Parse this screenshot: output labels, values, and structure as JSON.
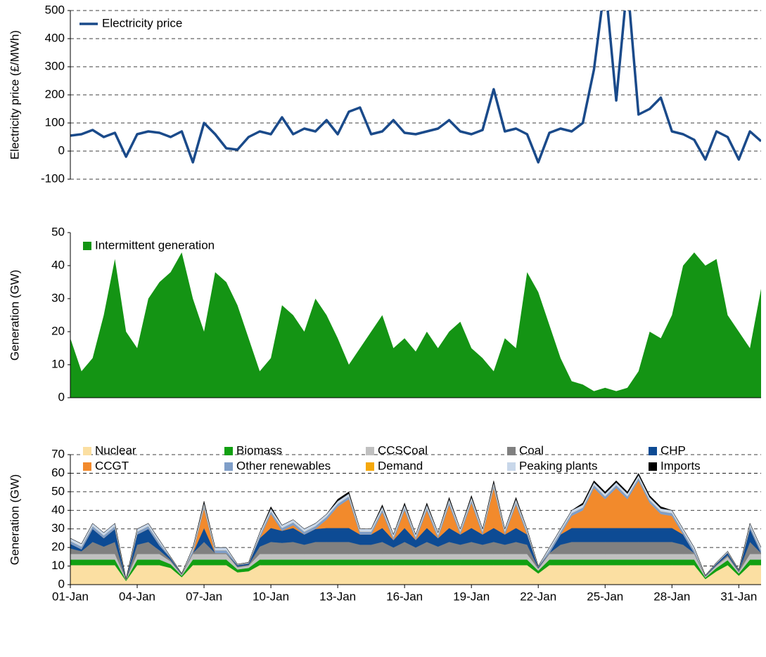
{
  "chart_data": [
    {
      "type": "line",
      "y_label": "Electricity price (£/MWh)",
      "x": [
        1,
        1.5,
        2,
        2.5,
        3,
        3.5,
        4,
        4.5,
        5,
        5.5,
        6,
        6.5,
        7,
        7.5,
        8,
        8.5,
        9,
        9.5,
        10,
        10.5,
        11,
        11.5,
        12,
        12.5,
        13,
        13.5,
        14,
        14.5,
        15,
        15.5,
        16,
        16.5,
        17,
        17.5,
        18,
        18.5,
        19,
        19.5,
        20,
        20.5,
        21,
        21.5,
        22,
        22.5,
        23,
        23.5,
        24,
        24.5,
        25,
        25.5,
        26,
        26.5,
        27,
        27.5,
        28,
        28.5,
        29,
        29.5,
        30,
        30.5,
        31,
        31.5,
        32
      ],
      "xlim": [
        1,
        32
      ],
      "ylim": [
        -100,
        500
      ],
      "yticks": [
        -100,
        0,
        100,
        200,
        300,
        400,
        500
      ],
      "grid": true,
      "legend": "upper left",
      "series": [
        {
          "name": "Electricity price",
          "color": "#1a4a8a",
          "values": [
            55,
            60,
            75,
            50,
            65,
            -20,
            60,
            70,
            65,
            50,
            70,
            -40,
            100,
            60,
            10,
            5,
            50,
            70,
            60,
            120,
            60,
            80,
            70,
            110,
            60,
            140,
            155,
            60,
            70,
            110,
            65,
            60,
            70,
            80,
            110,
            70,
            60,
            75,
            220,
            70,
            80,
            60,
            -40,
            65,
            80,
            70,
            100,
            290,
            600,
            180,
            600,
            130,
            150,
            190,
            70,
            60,
            40,
            -30,
            70,
            50,
            -30,
            70,
            35
          ]
        }
      ]
    },
    {
      "type": "area",
      "y_label": "Generation (GW)",
      "x": [
        1,
        1.5,
        2,
        2.5,
        3,
        3.5,
        4,
        4.5,
        5,
        5.5,
        6,
        6.5,
        7,
        7.5,
        8,
        8.5,
        9,
        9.5,
        10,
        10.5,
        11,
        11.5,
        12,
        12.5,
        13,
        13.5,
        14,
        14.5,
        15,
        15.5,
        16,
        16.5,
        17,
        17.5,
        18,
        18.5,
        19,
        19.5,
        20,
        20.5,
        21,
        21.5,
        22,
        22.5,
        23,
        23.5,
        24,
        24.5,
        25,
        25.5,
        26,
        26.5,
        27,
        27.5,
        28,
        28.5,
        29,
        29.5,
        30,
        30.5,
        31,
        31.5,
        32
      ],
      "xlim": [
        1,
        32
      ],
      "ylim": [
        0,
        50
      ],
      "yticks": [
        0,
        10,
        20,
        30,
        40,
        50
      ],
      "grid": false,
      "legend": "upper left",
      "series": [
        {
          "name": "Intermittent generation",
          "color": "#149414",
          "values": [
            18,
            8,
            12,
            25,
            42,
            20,
            15,
            30,
            35,
            38,
            44,
            30,
            20,
            38,
            35,
            28,
            18,
            8,
            12,
            28,
            25,
            20,
            30,
            25,
            18,
            10,
            15,
            20,
            25,
            15,
            18,
            14,
            20,
            15,
            20,
            23,
            15,
            12,
            8,
            18,
            15,
            38,
            32,
            22,
            12,
            5,
            4,
            2,
            3,
            2,
            3,
            8,
            20,
            18,
            25,
            40,
            44,
            40,
            42,
            25,
            20,
            15,
            33
          ]
        }
      ]
    },
    {
      "type": "stacked_area",
      "y_label": "Generation (GW)",
      "x": [
        1,
        1.5,
        2,
        2.5,
        3,
        3.5,
        4,
        4.5,
        5,
        5.5,
        6,
        6.5,
        7,
        7.5,
        8,
        8.5,
        9,
        9.5,
        10,
        10.5,
        11,
        11.5,
        12,
        12.5,
        13,
        13.5,
        14,
        14.5,
        15,
        15.5,
        16,
        16.5,
        17,
        17.5,
        18,
        18.5,
        19,
        19.5,
        20,
        20.5,
        21,
        21.5,
        22,
        22.5,
        23,
        23.5,
        24,
        24.5,
        25,
        25.5,
        26,
        26.5,
        27,
        27.5,
        28,
        28.5,
        29,
        29.5,
        30,
        30.5,
        31,
        31.5,
        32
      ],
      "xlim": [
        1,
        32
      ],
      "ylim": [
        0,
        70
      ],
      "yticks": [
        0,
        10,
        20,
        30,
        40,
        50,
        60,
        70
      ],
      "grid": true,
      "legend": "top",
      "xticks": [
        {
          "value": 1,
          "label": "01-Jan"
        },
        {
          "value": 4,
          "label": "04-Jan"
        },
        {
          "value": 7,
          "label": "07-Jan"
        },
        {
          "value": 10,
          "label": "10-Jan"
        },
        {
          "value": 13,
          "label": "13-Jan"
        },
        {
          "value": 16,
          "label": "16-Jan"
        },
        {
          "value": 19,
          "label": "19-Jan"
        },
        {
          "value": 22,
          "label": "22-Jan"
        },
        {
          "value": 25,
          "label": "25-Jan"
        },
        {
          "value": 28,
          "label": "28-Jan"
        },
        {
          "value": 31,
          "label": "31-Jan"
        }
      ],
      "series": [
        {
          "name": "Nuclear",
          "color": "#fbdfa2",
          "values": [
            10.5,
            10.5,
            10.5,
            10.5,
            10.5,
            2,
            10.5,
            10.5,
            10.5,
            9,
            4,
            10.5,
            10.5,
            10.5,
            10.5,
            6.6,
            7.2,
            10.5,
            10.5,
            10.5,
            10.5,
            10.5,
            10.5,
            10.5,
            10.5,
            10.5,
            10.5,
            10.5,
            10.5,
            10.5,
            10.5,
            10.5,
            10.5,
            10.5,
            10.5,
            10.5,
            10.5,
            10.5,
            10.5,
            10.5,
            10.5,
            10.5,
            6,
            10.5,
            10.5,
            10.5,
            10.5,
            10.5,
            10.5,
            10.5,
            10.5,
            10.5,
            10.5,
            10.5,
            10.5,
            10.5,
            10.5,
            3,
            7.2,
            10.5,
            4.8,
            10.5,
            10.5
          ]
        },
        {
          "name": "Biomass",
          "color": "#12a012",
          "values": [
            3,
            3,
            3,
            3,
            3,
            0.5,
            3,
            3,
            3,
            2,
            0.8,
            3,
            3,
            3,
            3,
            1.6,
            1.8,
            3,
            3,
            3,
            3,
            3,
            3,
            3,
            3,
            3,
            3,
            3,
            3,
            3,
            3,
            3,
            3,
            3,
            3,
            3,
            3,
            3,
            3,
            3,
            3,
            3,
            1.5,
            3,
            3,
            3,
            3,
            3,
            3,
            3,
            3,
            3,
            3,
            3,
            3,
            3,
            3,
            0.8,
            1.8,
            2.7,
            1.2,
            3,
            3
          ]
        },
        {
          "name": "CCSCoal",
          "color": "#c0c0c0",
          "values": [
            3,
            3,
            3,
            3,
            3,
            0.3,
            3,
            3,
            3,
            1.5,
            0.5,
            3,
            3,
            3,
            3,
            1.1,
            1.2,
            3,
            3,
            3,
            3,
            3,
            3,
            3,
            3,
            3,
            3,
            3,
            3,
            3,
            3,
            3,
            3,
            3,
            3,
            3,
            3,
            3,
            3,
            3,
            3,
            3,
            1,
            3,
            3,
            3,
            3,
            3,
            3,
            3,
            3,
            3,
            3,
            3,
            3,
            3,
            3,
            0.5,
            1.2,
            1.8,
            0.8,
            3,
            3
          ]
        },
        {
          "name": "Coal",
          "color": "#808080",
          "values": [
            3,
            1.5,
            6.5,
            4,
            6.5,
            0,
            5,
            6.5,
            2,
            0.8,
            0.2,
            0.5,
            6.5,
            0.5,
            0.5,
            0.5,
            0.5,
            4,
            6.5,
            6,
            6.5,
            5,
            6.5,
            6.5,
            6.5,
            6.5,
            5,
            5,
            6.5,
            3.5,
            6.5,
            3.5,
            6.5,
            4,
            6.5,
            5,
            6.5,
            5,
            6.5,
            5,
            6.5,
            5,
            0.5,
            0.5,
            5,
            6.5,
            6.5,
            6.5,
            6.5,
            6.5,
            6.5,
            6.5,
            6.5,
            6.5,
            6.5,
            5,
            0.5,
            0.2,
            0.5,
            0.9,
            0.4,
            6.5,
            0.5
          ]
        },
        {
          "name": "CHP",
          "color": "#0d4b94",
          "values": [
            2.5,
            1,
            7,
            4.5,
            7,
            0.2,
            5.5,
            7,
            2.5,
            1,
            0.3,
            0,
            7.5,
            0,
            0,
            0.7,
            0.7,
            4.5,
            7.5,
            6.5,
            7.5,
            5.5,
            7,
            7.5,
            7.5,
            7.5,
            5.5,
            5.5,
            7.5,
            4,
            7.5,
            4,
            7.5,
            4.5,
            7.5,
            5.5,
            7.5,
            5.5,
            7.5,
            5.5,
            7.5,
            5.5,
            0.6,
            0,
            5.5,
            7.5,
            7.5,
            7.5,
            7.5,
            7.5,
            7.5,
            7.5,
            7.5,
            7.5,
            7.5,
            5.5,
            0,
            0.3,
            0.7,
            1.2,
            0.5,
            7,
            0
          ]
        },
        {
          "name": "CCGT",
          "color": "#f28a2c",
          "values": [
            0,
            0,
            0,
            0,
            0,
            0,
            0,
            0,
            0,
            0,
            0,
            0,
            10.5,
            0,
            0,
            0,
            0,
            0,
            7.5,
            0,
            1.5,
            0,
            0,
            4.5,
            11.5,
            15.5,
            0,
            0,
            8.5,
            0,
            9.5,
            0,
            9.5,
            0,
            12.5,
            0,
            13.5,
            0,
            21.5,
            0,
            12.5,
            0,
            0,
            0,
            0,
            6.5,
            9.5,
            21.5,
            15.5,
            21.5,
            15.5,
            25.5,
            13.5,
            7.5,
            6.5,
            0,
            0,
            0,
            0,
            0,
            0,
            0,
            0
          ]
        },
        {
          "name": "Other renewables",
          "color": "#7f9ec8",
          "values": [
            1.5,
            1.5,
            1.5,
            1.5,
            1.5,
            0,
            1.5,
            1.5,
            1.5,
            0.4,
            0.1,
            1.5,
            1.5,
            1.5,
            1.5,
            0.3,
            0.3,
            1.5,
            1.5,
            1.5,
            1.5,
            1.5,
            1.5,
            1.5,
            1.5,
            1.5,
            1.5,
            1.5,
            1.5,
            1.5,
            1.5,
            1.5,
            1.5,
            1.5,
            1.5,
            1.5,
            1.5,
            1.5,
            1.5,
            1.5,
            1.5,
            1.5,
            0.2,
            1.5,
            1.5,
            1.5,
            1.5,
            1.5,
            1.5,
            1.5,
            1.5,
            1.5,
            1.5,
            1.5,
            1.5,
            1.5,
            1.5,
            0.1,
            0.3,
            0.5,
            0.2,
            1.5,
            1.5
          ]
        },
        {
          "name": "Demand",
          "color": "#f5a80c",
          "values": [
            0,
            0,
            0,
            0,
            0,
            0,
            0,
            0,
            0,
            0,
            0,
            0,
            0,
            0,
            0,
            0,
            0,
            0,
            0,
            0,
            0,
            0,
            0,
            0,
            0,
            0,
            0,
            0,
            0,
            0,
            0,
            0,
            0,
            0,
            0,
            0,
            0,
            0,
            0,
            0,
            0,
            0,
            0,
            0,
            0,
            0,
            0,
            0,
            0,
            0,
            0,
            0,
            0,
            0,
            0,
            0,
            0,
            0,
            0,
            0,
            0,
            0,
            0
          ]
        },
        {
          "name": "Peaking plants",
          "color": "#c8d7ea",
          "values": [
            1.5,
            1.5,
            1.5,
            1.5,
            1.5,
            0,
            1.5,
            1.5,
            1.5,
            0.3,
            0.1,
            1.5,
            1.5,
            1.5,
            1.5,
            0.2,
            0.3,
            1.5,
            1.5,
            1.5,
            1.5,
            1.5,
            1.5,
            1.5,
            1.5,
            1.5,
            1.5,
            1.5,
            1.5,
            1.5,
            1.5,
            1.5,
            1.5,
            1.5,
            1.5,
            1.5,
            1.5,
            1.5,
            1.5,
            1.5,
            1.5,
            1.5,
            0.2,
            1.5,
            1.5,
            1.5,
            1.5,
            1.5,
            1.5,
            1.5,
            1.5,
            1.5,
            1.5,
            1.5,
            1.5,
            1.5,
            1.5,
            0.1,
            0.3,
            0.4,
            0.1,
            1.5,
            1.5
          ]
        },
        {
          "name": "Imports",
          "color": "#000000",
          "values": [
            0,
            0,
            0,
            0,
            0,
            0,
            0,
            0,
            0,
            0,
            0,
            0,
            1,
            0,
            0,
            0,
            0,
            0,
            1,
            0,
            0,
            0,
            0,
            0,
            1,
            1,
            0,
            0,
            1,
            0,
            1,
            0,
            1,
            0,
            1,
            0,
            1,
            0,
            1,
            0,
            1,
            0,
            0,
            0,
            0,
            0,
            1,
            1,
            1,
            1,
            1,
            1,
            1,
            1,
            0,
            0,
            0,
            0,
            0,
            0,
            0,
            0,
            0
          ]
        }
      ]
    }
  ]
}
